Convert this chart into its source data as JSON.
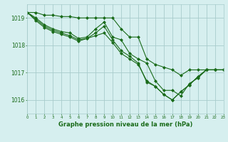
{
  "title": "Graphe pression niveau de la mer (hPa)",
  "xlim": [
    0,
    23
  ],
  "ylim": [
    1015.5,
    1019.5
  ],
  "yticks": [
    1016,
    1017,
    1018,
    1019
  ],
  "bg_color": "#d6efef",
  "grid_color": "#a8cccc",
  "line_color": "#1a6b1a",
  "lines": [
    [
      1019.2,
      1019.2,
      1019.1,
      1019.1,
      1019.05,
      1019.05,
      1019.0,
      1019.0,
      1019.0,
      1019.0,
      1019.0,
      1018.6,
      1018.3,
      1018.3,
      1017.5,
      1017.3,
      1017.2,
      1017.1,
      1016.9,
      1017.1,
      1017.1,
      1017.1,
      1017.1,
      1017.1
    ],
    [
      1019.2,
      1019.0,
      1018.75,
      1018.6,
      1018.5,
      1018.45,
      1018.25,
      1018.3,
      1018.6,
      1018.85,
      1018.3,
      1018.2,
      1017.7,
      1017.5,
      1017.35,
      1016.7,
      1016.35,
      1016.35,
      1016.15,
      1016.6,
      1016.8,
      1017.1,
      1017.1,
      1017.1
    ],
    [
      1019.2,
      1018.95,
      1018.7,
      1018.55,
      1018.45,
      1018.35,
      1018.2,
      1018.25,
      1018.45,
      1018.7,
      1018.2,
      1017.8,
      1017.6,
      1017.35,
      1016.65,
      1016.5,
      1016.2,
      1016.0,
      1016.3,
      1016.55,
      1016.85,
      1017.1,
      1017.1,
      1017.1
    ],
    [
      1019.2,
      1018.9,
      1018.65,
      1018.5,
      1018.4,
      1018.3,
      1018.15,
      1018.25,
      1018.35,
      1018.45,
      1018.1,
      1017.7,
      1017.5,
      1017.3,
      1016.7,
      1016.5,
      1016.2,
      1016.0,
      1016.3,
      1016.55,
      1016.85,
      1017.1,
      1017.1,
      1017.1
    ]
  ]
}
